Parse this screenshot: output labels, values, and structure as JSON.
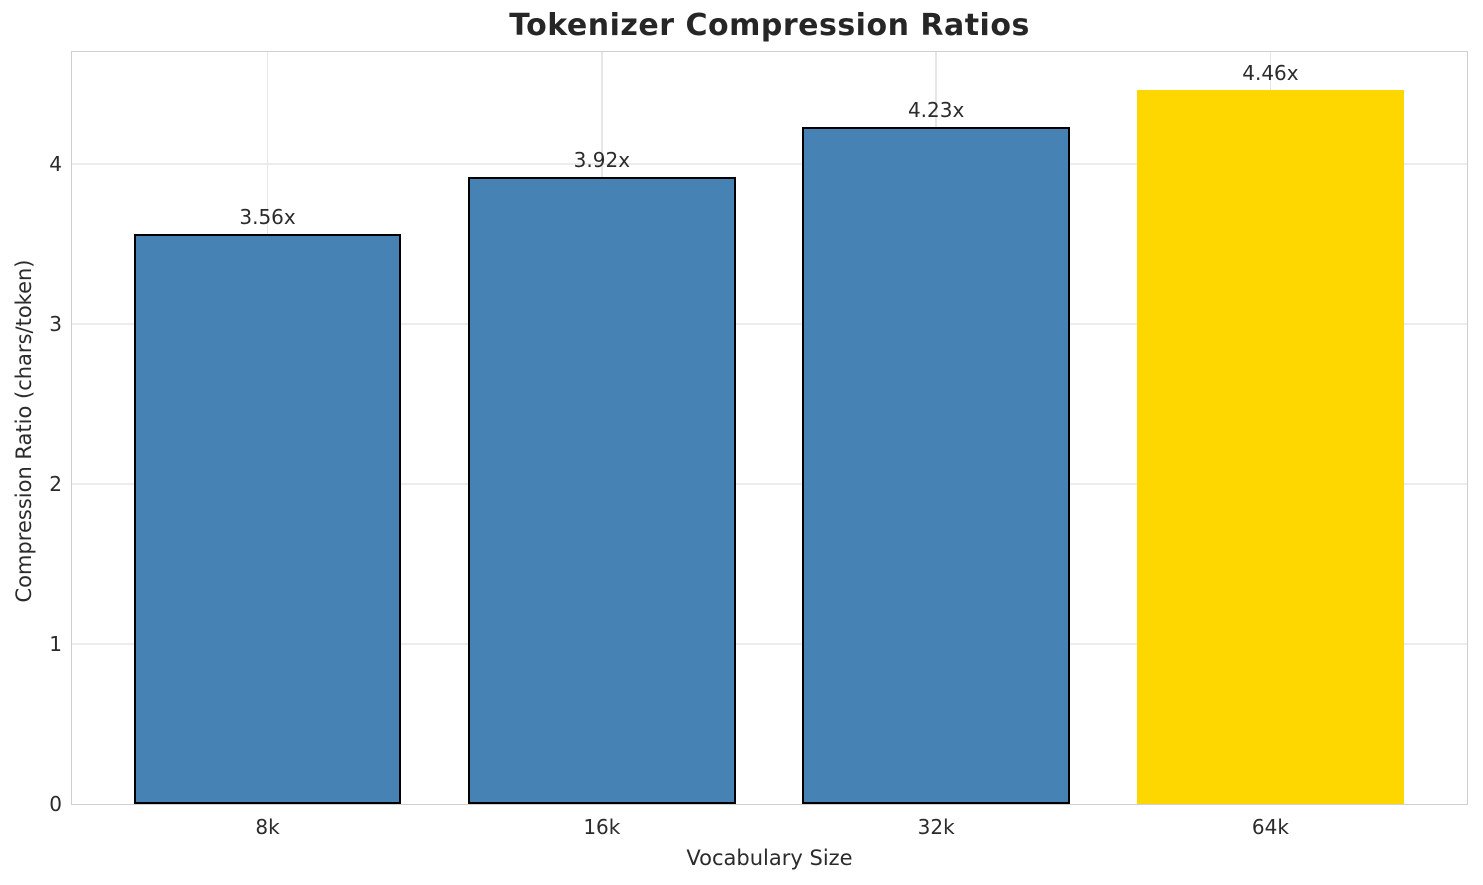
{
  "title": "Tokenizer Compression Ratios",
  "chart_data": {
    "type": "bar",
    "title": "Tokenizer Compression Ratios",
    "xlabel": "Vocabulary Size",
    "ylabel": "Compression Ratio (chars/token)",
    "categories": [
      "8k",
      "16k",
      "32k",
      "64k"
    ],
    "values": [
      3.56,
      3.92,
      4.23,
      4.46
    ],
    "bar_labels": [
      "3.56x",
      "3.92x",
      "4.23x",
      "4.46x"
    ],
    "yticks": [
      0,
      1,
      2,
      3,
      4
    ],
    "ytick_labels": [
      "0",
      "1",
      "2",
      "3",
      "4"
    ],
    "bar_colors": [
      "#4682b4",
      "#4682b4",
      "#4682b4",
      "#ffd700"
    ],
    "bar_edge_colors": [
      "#000000",
      "#000000",
      "#000000",
      "none"
    ],
    "highlighted_category": "64k",
    "layout": {
      "ylim": [
        0,
        4.7
      ],
      "xlim": [
        -0.585,
        3.588
      ],
      "bar_width_data": 0.8,
      "grid": true,
      "grid_axes": "both",
      "legend": false
    },
    "colors": {
      "bar_default": "#4682b4",
      "bar_highlight": "#ffd700",
      "bar_edge": "#000000",
      "gridline": "#ececec",
      "spine": "#cfcfcf",
      "text": "#2b2b2b",
      "title_text": "#262626",
      "background": "#ffffff"
    }
  }
}
